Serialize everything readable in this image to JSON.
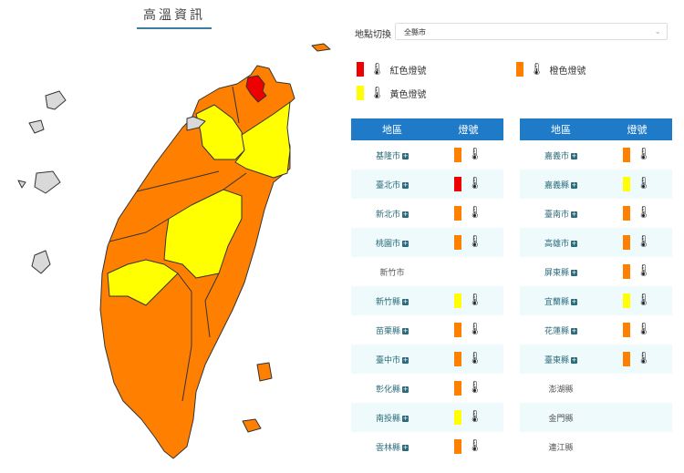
{
  "title": "高溫資訊",
  "location": {
    "label": "地點切換",
    "selected": "全縣市"
  },
  "colors": {
    "red": "#ee0000",
    "orange": "#ff8000",
    "yellow": "#ffff00",
    "gray": "#d9d9d9"
  },
  "legend": [
    {
      "label": "紅色燈號",
      "color": "#ee0000"
    },
    {
      "label": "橙色燈號",
      "color": "#ff8000"
    },
    {
      "label": "黃色燈號",
      "color": "#ffff00"
    }
  ],
  "table": {
    "col_region": "地區",
    "col_signal": "燈號"
  },
  "left_rows": [
    {
      "name": "基隆市",
      "level": "orange"
    },
    {
      "name": "臺北市",
      "level": "red"
    },
    {
      "name": "新北市",
      "level": "orange"
    },
    {
      "name": "桃園市",
      "level": "orange"
    },
    {
      "name": "新竹市",
      "level": ""
    },
    {
      "name": "新竹縣",
      "level": "yellow"
    },
    {
      "name": "苗栗縣",
      "level": "orange"
    },
    {
      "name": "臺中市",
      "level": "orange"
    },
    {
      "name": "彰化縣",
      "level": "orange"
    },
    {
      "name": "南投縣",
      "level": "yellow"
    },
    {
      "name": "雲林縣",
      "level": "orange"
    }
  ],
  "right_rows": [
    {
      "name": "嘉義市",
      "level": "orange"
    },
    {
      "name": "嘉義縣",
      "level": "yellow"
    },
    {
      "name": "臺南市",
      "level": "orange"
    },
    {
      "name": "高雄市",
      "level": "orange"
    },
    {
      "name": "屏東縣",
      "level": "orange"
    },
    {
      "name": "宜蘭縣",
      "level": "yellow"
    },
    {
      "name": "花蓮縣",
      "level": "orange"
    },
    {
      "name": "臺東縣",
      "level": "orange"
    },
    {
      "name": "澎湖縣",
      "level": ""
    },
    {
      "name": "金門縣",
      "level": ""
    },
    {
      "name": "連江縣",
      "level": ""
    }
  ]
}
